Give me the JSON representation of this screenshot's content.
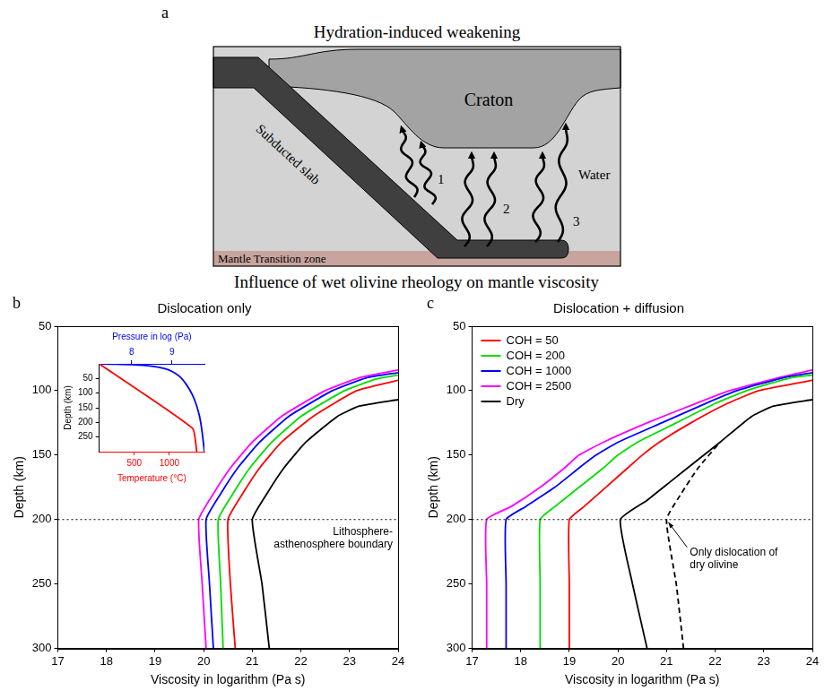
{
  "diagram": {
    "panel": "a",
    "title": "Hydration-induced weakening",
    "labels": {
      "craton": "Craton",
      "slab": "Subducted slab",
      "water": "Water",
      "transition_zone": "Mantle Transition zone"
    },
    "arrow_groups": [
      "1",
      "2",
      "3"
    ]
  },
  "title": "Influence of wet olivine rheology on mantle viscosity",
  "chart_data": [
    {
      "panel": "b",
      "type": "line",
      "title": "Dislocation only",
      "x_label": "Viscosity in logarithm (Pa s)",
      "y_label": "Depth (km)",
      "xlim": [
        17,
        24
      ],
      "xticks": [
        17,
        18,
        19,
        20,
        21,
        22,
        23,
        24
      ],
      "ylim": [
        300,
        50
      ],
      "yticks": [
        50,
        100,
        150,
        200,
        250,
        300
      ],
      "grid": false,
      "reference_lines": [
        {
          "y": 200,
          "label": "Lithosphere-asthenosphere boundary"
        }
      ],
      "series": [
        {
          "color": "#ff0000",
          "x": [
            20.65,
            20.55,
            20.5,
            20.8,
            21.15,
            21.6,
            22.25,
            23.15,
            24.0
          ],
          "values": [
            300,
            250,
            200,
            180,
            160,
            140,
            120,
            100,
            92
          ]
        },
        {
          "color": "#00dd00",
          "x": [
            20.4,
            20.35,
            20.3,
            20.6,
            20.95,
            21.4,
            22.0,
            22.9,
            23.55,
            24.0
          ],
          "values": [
            300,
            250,
            200,
            180,
            160,
            140,
            120,
            100,
            91,
            88
          ]
        },
        {
          "color": "#0000ff",
          "x": [
            20.2,
            20.12,
            20.05,
            20.35,
            20.7,
            21.15,
            21.75,
            22.65,
            23.35,
            24.0
          ],
          "values": [
            300,
            250,
            200,
            180,
            160,
            140,
            120,
            100,
            90,
            86
          ]
        },
        {
          "color": "#ff00ff",
          "x": [
            20.05,
            19.97,
            19.9,
            20.2,
            20.55,
            21.0,
            21.6,
            22.5,
            23.2,
            24.0
          ],
          "values": [
            300,
            250,
            200,
            180,
            160,
            140,
            120,
            100,
            90,
            84
          ]
        },
        {
          "color": "#000000",
          "x": [
            21.35,
            21.2,
            21.0,
            21.3,
            21.65,
            22.1,
            22.75,
            23.2,
            24.0
          ],
          "values": [
            300,
            250,
            200,
            180,
            160,
            140,
            120,
            112,
            107
          ]
        }
      ]
    },
    {
      "type": "line",
      "y_label": "Depth (km)",
      "xlim": [
        0,
        1500
      ],
      "xticks": [
        500,
        1000
      ],
      "x2lim": [
        7.2,
        9.8
      ],
      "x2ticks": [
        8,
        9
      ],
      "ylim": [
        300,
        0
      ],
      "yticks": [
        50,
        100,
        150,
        200,
        250
      ],
      "grid": false,
      "series": [
        {
          "name": "Temperature (°C)",
          "color": "#ff0000",
          "x": [
            0,
            1330,
            1390
          ],
          "values": [
            0,
            220,
            300
          ]
        },
        {
          "name": "Pressure in log (Pa)",
          "color": "#0000ff",
          "axis": "x2",
          "x": [
            7.3,
            7.6,
            8.0,
            8.5,
            8.8,
            9.0,
            9.2,
            9.35,
            9.5,
            9.6,
            9.68,
            9.74,
            9.8
          ],
          "values": [
            0.5,
            1,
            2.5,
            8,
            16,
            26,
            45,
            70,
            105,
            140,
            180,
            230,
            300
          ]
        }
      ]
    },
    {
      "panel": "c",
      "type": "line",
      "title": "Dislocation + diffusion",
      "x_label": "Viscosity in logarithm (Pa s)",
      "y_label": "Depth (km)",
      "xlim": [
        17,
        24
      ],
      "xticks": [
        17,
        18,
        19,
        20,
        21,
        22,
        23,
        24
      ],
      "ylim": [
        300,
        50
      ],
      "yticks": [
        50,
        100,
        150,
        200,
        250,
        300
      ],
      "grid": false,
      "legend": "upper left",
      "reference_lines": [
        {
          "y": 200
        }
      ],
      "annotations": [
        {
          "text": "Only dislocation of dry olivine",
          "x": 21.0,
          "y": 200
        }
      ],
      "series": [
        {
          "name": "COH = 50",
          "color": "#ff0000",
          "x": [
            19.0,
            19.0,
            19.0,
            19.3,
            19.75,
            20.2,
            20.5,
            20.85,
            21.5,
            22.25,
            22.9,
            24.0
          ],
          "values": [
            300,
            250,
            200,
            190,
            175,
            160,
            150,
            140,
            125,
            110,
            100,
            92
          ]
        },
        {
          "name": "COH = 200",
          "color": "#00dd00",
          "x": [
            18.4,
            18.4,
            18.4,
            18.7,
            19.2,
            19.7,
            20.0,
            20.4,
            21.2,
            22.0,
            22.65,
            23.55,
            24.0
          ],
          "values": [
            300,
            250,
            200,
            190,
            175,
            160,
            150,
            140,
            125,
            110,
            100,
            90,
            88
          ]
        },
        {
          "name": "COH = 1000",
          "color": "#0000ff",
          "x": [
            17.7,
            17.7,
            17.7,
            18.1,
            18.7,
            19.2,
            19.55,
            20.0,
            20.9,
            21.8,
            22.45,
            23.4,
            24.0
          ],
          "values": [
            300,
            250,
            200,
            190,
            175,
            160,
            150,
            140,
            125,
            110,
            100,
            90,
            86
          ]
        },
        {
          "name": "COH = 2500",
          "color": "#ff00ff",
          "x": [
            17.3,
            17.3,
            17.3,
            17.8,
            18.4,
            18.9,
            19.2,
            19.7,
            20.6,
            21.6,
            22.3,
            23.3,
            24.0
          ],
          "values": [
            300,
            250,
            200,
            190,
            175,
            160,
            150,
            140,
            125,
            110,
            100,
            90,
            84
          ]
        },
        {
          "name": "Dry",
          "color": "#000000",
          "x": [
            20.6,
            20.3,
            20.05,
            20.6,
            21.1,
            21.6,
            22.1,
            22.75,
            23.2,
            24.0
          ],
          "values": [
            300,
            250,
            200,
            185,
            170,
            155,
            140,
            120,
            112,
            107
          ]
        },
        {
          "color": "#000000",
          "line_style": "dashed",
          "x": [
            21.35,
            21.2,
            21.0,
            21.3,
            21.65,
            22.1
          ],
          "values": [
            300,
            250,
            200,
            180,
            160,
            140
          ]
        }
      ]
    }
  ]
}
